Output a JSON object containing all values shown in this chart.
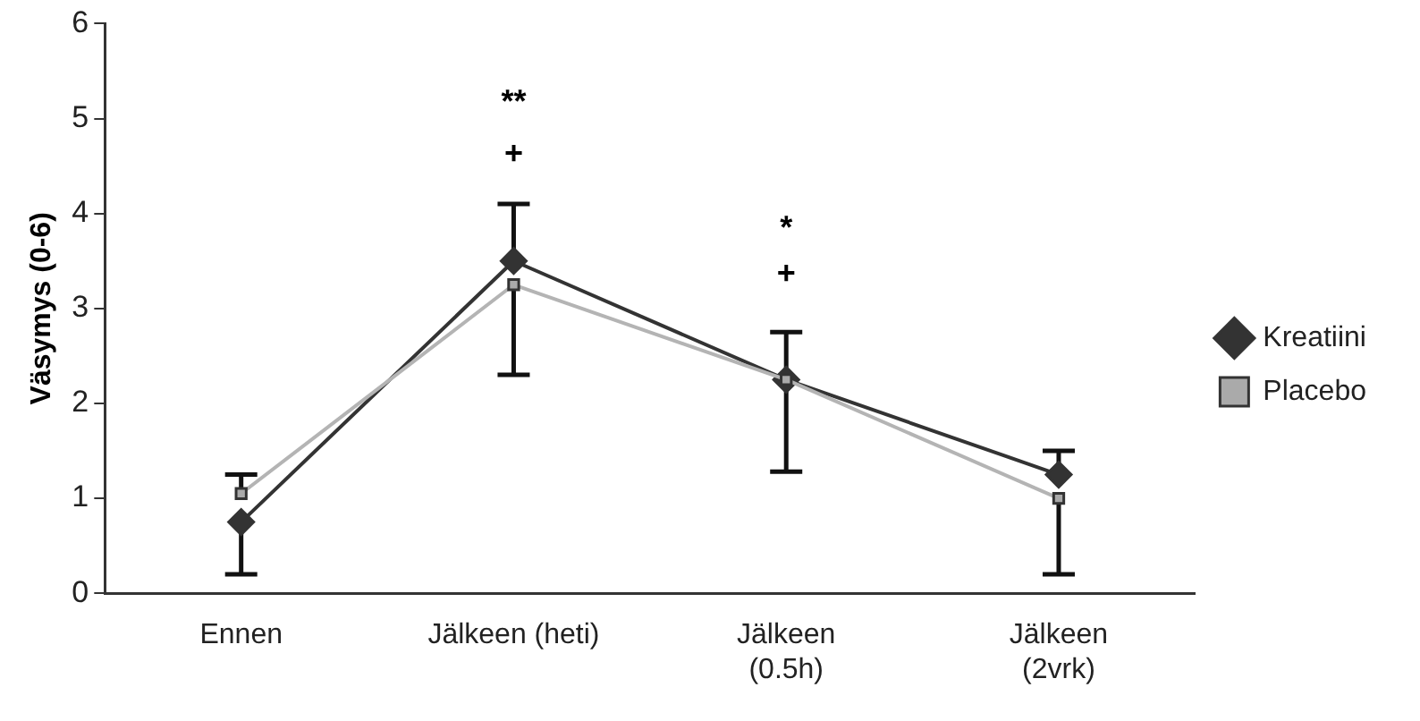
{
  "chart_data": {
    "type": "line",
    "ylabel": "Väsymys (0-6)",
    "categories": [
      "Ennen",
      "Jälkeen (heti)",
      "Jälkeen\n(0.5h)",
      "Jälkeen\n(2vrk)"
    ],
    "series": [
      {
        "name": "Kreatiini",
        "color": "#333333",
        "marker": "diamond",
        "values": [
          0.75,
          3.5,
          2.25,
          1.25
        ],
        "errors": [
          [
            0.2,
            0.75
          ],
          [
            3.5,
            4.1
          ],
          [
            2.25,
            2.75
          ],
          [
            1.25,
            1.5
          ]
        ]
      },
      {
        "name": "Placebo",
        "color": "#b4b4b4",
        "marker": "square",
        "values": [
          1.05,
          3.25,
          2.25,
          1.0
        ],
        "errors": [
          [
            1.05,
            1.25
          ],
          [
            2.3,
            3.25
          ],
          [
            1.28,
            2.25
          ],
          [
            0.2,
            1.0
          ]
        ]
      }
    ],
    "ylim": [
      0,
      6
    ],
    "yticks": [
      0,
      1,
      2,
      3,
      4,
      5,
      6
    ],
    "grid": false,
    "legend": "right",
    "annotations": [
      "**",
      "+",
      "*",
      "+"
    ]
  }
}
